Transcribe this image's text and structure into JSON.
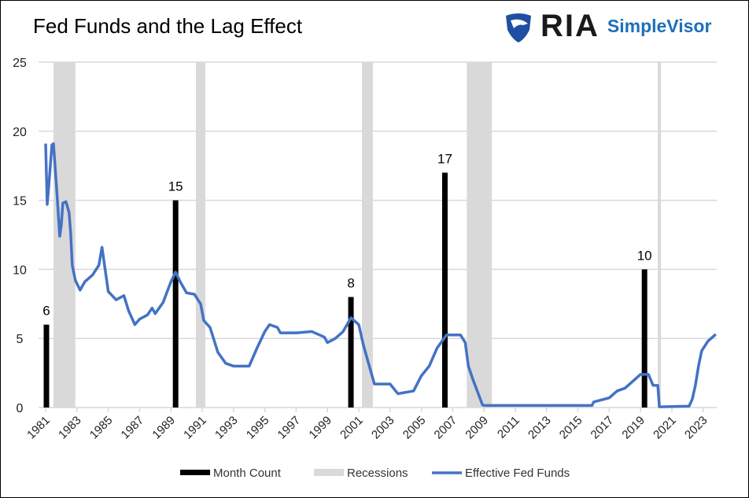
{
  "header": {
    "title": "Fed Funds and the Lag Effect",
    "logo": "RIA SimpleVisor",
    "logo_main": "RIA",
    "logo_sub": "SimpleVisor"
  },
  "colors": {
    "bars": "#000000",
    "recessions": "#d9d9d9",
    "line": "#4472c4",
    "grid": "#d9d9d9",
    "logo_blue": "#1e6fb8"
  },
  "chart_data": {
    "type": "bar+line",
    "title": "Fed Funds and the Lag Effect",
    "ylim": [
      0,
      25
    ],
    "yticks": [
      0,
      5,
      10,
      15,
      20,
      25
    ],
    "xlim": [
      1981,
      2023.9
    ],
    "xticks": [
      "1981",
      "1983",
      "1985",
      "1987",
      "1989",
      "1991",
      "1993",
      "1995",
      "1997",
      "1999",
      "2001",
      "2003",
      "2005",
      "2007",
      "2009",
      "2011",
      "2013",
      "2015",
      "2017",
      "2019",
      "2021",
      "2023"
    ],
    "grid": true,
    "legend": "bottom",
    "legend_entries": [
      "Month Count",
      "Recessions",
      "Effective Fed Funds"
    ],
    "month_count": [
      {
        "x": 1981.05,
        "value": 6
      },
      {
        "x": 1989.3,
        "value": 15
      },
      {
        "x": 2000.5,
        "value": 8
      },
      {
        "x": 2006.5,
        "value": 17
      },
      {
        "x": 2019.25,
        "value": 10
      }
    ],
    "recessions": [
      [
        1981.5,
        1982.9
      ],
      [
        1990.6,
        1991.2
      ],
      [
        2001.2,
        2001.9
      ],
      [
        2007.9,
        2009.5
      ],
      [
        2020.1,
        2020.3
      ]
    ],
    "fed_funds": {
      "x": [
        1981.0,
        1981.1,
        1981.2,
        1981.4,
        1981.5,
        1981.7,
        1981.9,
        1982.0,
        1982.1,
        1982.3,
        1982.5,
        1982.6,
        1982.7,
        1982.9,
        1983.2,
        1983.5,
        1983.8,
        1984.0,
        1984.4,
        1984.6,
        1984.8,
        1985.0,
        1985.5,
        1986.0,
        1986.3,
        1986.7,
        1987.0,
        1987.5,
        1987.8,
        1988.0,
        1988.5,
        1989.0,
        1989.3,
        1989.6,
        1990.0,
        1990.5,
        1990.9,
        1991.1,
        1991.5,
        1992.0,
        1992.5,
        1993.0,
        1994.0,
        1994.5,
        1995.0,
        1995.3,
        1995.8,
        1996.0,
        1997.0,
        1998.0,
        1998.8,
        1999.0,
        1999.5,
        2000.0,
        2000.5,
        2001.0,
        2001.3,
        2001.8,
        2002.0,
        2003.0,
        2003.5,
        2004.5,
        2005.0,
        2005.5,
        2006.0,
        2006.6,
        2007.5,
        2007.8,
        2008.0,
        2008.3,
        2008.9,
        2009.0,
        2015.9,
        2016.0,
        2017.0,
        2017.5,
        2018.0,
        2018.5,
        2019.0,
        2019.5,
        2019.8,
        2020.1,
        2020.2,
        2022.1,
        2022.3,
        2022.5,
        2022.7,
        2022.9,
        2023.3,
        2023.6,
        2023.8
      ],
      "y": [
        19.1,
        14.7,
        16,
        19,
        19.1,
        15.9,
        12.4,
        13.2,
        14.8,
        14.9,
        14.1,
        12.6,
        10.3,
        9.2,
        8.5,
        9.1,
        9.4,
        9.6,
        10.3,
        11.6,
        10.0,
        8.4,
        7.8,
        8.1,
        7.0,
        6.0,
        6.4,
        6.7,
        7.2,
        6.8,
        7.6,
        9.1,
        9.8,
        9.1,
        8.3,
        8.2,
        7.5,
        6.3,
        5.8,
        4.0,
        3.2,
        3.0,
        3.0,
        4.3,
        5.5,
        6.0,
        5.8,
        5.4,
        5.4,
        5.5,
        5.1,
        4.7,
        5.0,
        5.5,
        6.5,
        6.0,
        4.5,
        2.5,
        1.7,
        1.7,
        1.0,
        1.2,
        2.3,
        3.0,
        4.3,
        5.25,
        5.25,
        4.7,
        3.0,
        2.0,
        0.2,
        0.15,
        0.15,
        0.4,
        0.7,
        1.2,
        1.4,
        1.9,
        2.4,
        2.4,
        1.6,
        1.6,
        0.05,
        0.1,
        0.6,
        1.6,
        3.0,
        4.1,
        4.8,
        5.1,
        5.3
      ]
    }
  }
}
